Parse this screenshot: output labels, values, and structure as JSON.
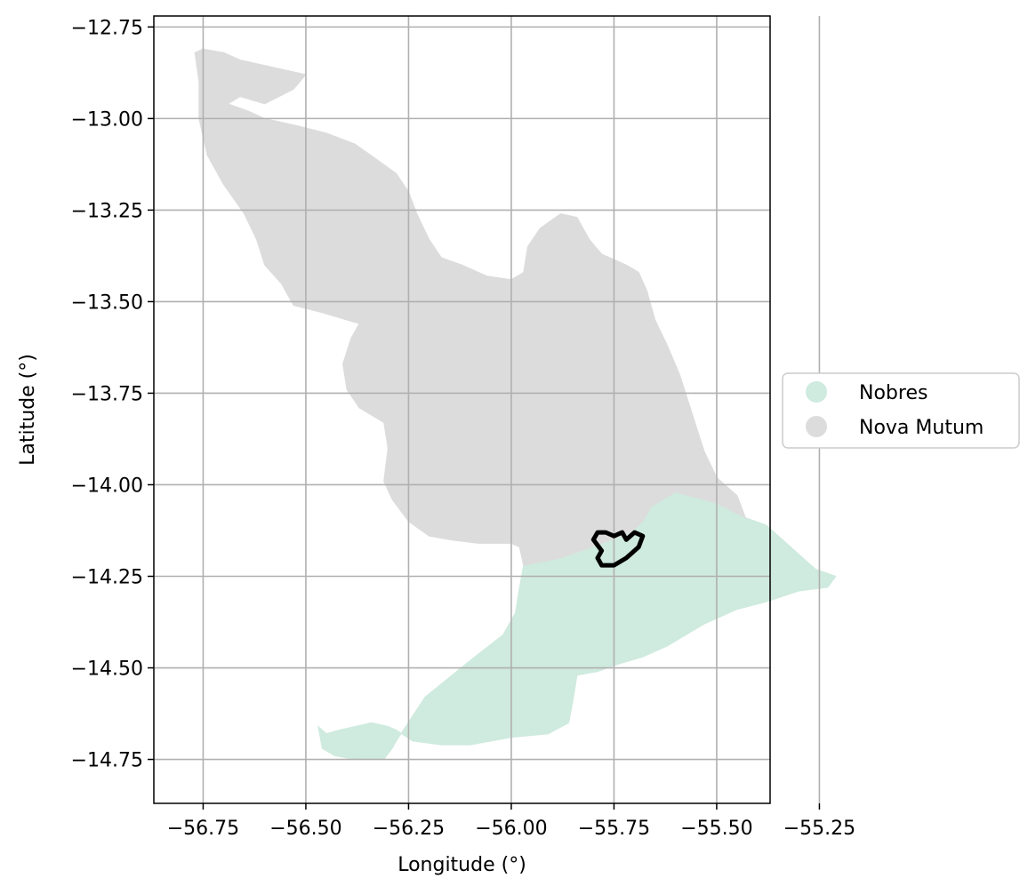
{
  "chart_data": {
    "type": "map",
    "xlabel": "Longitude (°)",
    "ylabel": "Latitude (°)",
    "xlim": [
      -56.87,
      -55.37
    ],
    "ylim": [
      -14.87,
      -12.72
    ],
    "xticks": [
      -56.75,
      -56.5,
      -56.25,
      -56.0,
      -55.75,
      -55.5,
      -55.25
    ],
    "xtick_labels": [
      "−56.75",
      "−56.50",
      "−56.25",
      "−56.00",
      "−55.75",
      "−55.50",
      "−55.25"
    ],
    "yticks": [
      -12.75,
      -13.0,
      -13.25,
      -13.5,
      -13.75,
      -14.0,
      -14.25,
      -14.5,
      -14.75
    ],
    "ytick_labels": [
      "−12.75",
      "−13.00",
      "−13.25",
      "−13.50",
      "−13.75",
      "−14.00",
      "−14.25",
      "−14.50",
      "−14.75"
    ],
    "grid": true,
    "legend_position": "right",
    "regions": [
      {
        "name": "Nobres",
        "color": "#cfeade",
        "outline": [
          [
            -55.97,
            -14.22
          ],
          [
            -55.88,
            -14.2
          ],
          [
            -55.78,
            -14.16
          ],
          [
            -55.71,
            -14.13
          ],
          [
            -55.68,
            -14.1
          ],
          [
            -55.66,
            -14.06
          ],
          [
            -55.6,
            -14.02
          ],
          [
            -55.5,
            -14.05
          ],
          [
            -55.43,
            -14.09
          ],
          [
            -55.38,
            -14.11
          ],
          [
            -55.34,
            -14.15
          ],
          [
            -55.3,
            -14.19
          ],
          [
            -55.26,
            -14.23
          ],
          [
            -55.21,
            -14.25
          ],
          [
            -55.23,
            -14.28
          ],
          [
            -55.3,
            -14.29
          ],
          [
            -55.38,
            -14.32
          ],
          [
            -55.45,
            -14.34
          ],
          [
            -55.53,
            -14.38
          ],
          [
            -55.62,
            -14.44
          ],
          [
            -55.68,
            -14.47
          ],
          [
            -55.74,
            -14.49
          ],
          [
            -55.79,
            -14.51
          ],
          [
            -55.84,
            -14.52
          ],
          [
            -55.85,
            -14.59
          ],
          [
            -55.86,
            -14.65
          ],
          [
            -55.91,
            -14.68
          ],
          [
            -56.0,
            -14.69
          ],
          [
            -56.1,
            -14.71
          ],
          [
            -56.17,
            -14.71
          ],
          [
            -56.24,
            -14.7
          ],
          [
            -56.28,
            -14.67
          ],
          [
            -56.3,
            -14.66
          ],
          [
            -56.34,
            -14.65
          ],
          [
            -56.38,
            -14.66
          ],
          [
            -56.42,
            -14.67
          ],
          [
            -56.45,
            -14.68
          ],
          [
            -56.47,
            -14.66
          ],
          [
            -56.46,
            -14.72
          ],
          [
            -56.43,
            -14.74
          ],
          [
            -56.38,
            -14.75
          ],
          [
            -56.31,
            -14.75
          ],
          [
            -56.29,
            -14.72
          ],
          [
            -56.28,
            -14.7
          ],
          [
            -56.21,
            -14.58
          ],
          [
            -56.1,
            -14.48
          ],
          [
            -56.02,
            -14.41
          ],
          [
            -55.99,
            -14.35
          ],
          [
            -55.98,
            -14.28
          ]
        ]
      },
      {
        "name": "Nova Mutum",
        "color": "#dcdcdc",
        "outline": [
          [
            -56.77,
            -12.82
          ],
          [
            -56.75,
            -12.81
          ],
          [
            -56.7,
            -12.82
          ],
          [
            -56.66,
            -12.84
          ],
          [
            -56.58,
            -12.86
          ],
          [
            -56.5,
            -12.88
          ],
          [
            -56.53,
            -12.92
          ],
          [
            -56.6,
            -12.96
          ],
          [
            -56.63,
            -12.95
          ],
          [
            -56.66,
            -12.94
          ],
          [
            -56.69,
            -12.96
          ],
          [
            -56.64,
            -12.98
          ],
          [
            -56.6,
            -13.0
          ],
          [
            -56.52,
            -13.02
          ],
          [
            -56.45,
            -13.04
          ],
          [
            -56.38,
            -13.07
          ],
          [
            -56.33,
            -13.11
          ],
          [
            -56.28,
            -13.15
          ],
          [
            -56.25,
            -13.2
          ],
          [
            -56.23,
            -13.26
          ],
          [
            -56.2,
            -13.33
          ],
          [
            -56.17,
            -13.38
          ],
          [
            -56.12,
            -13.4
          ],
          [
            -56.06,
            -13.43
          ],
          [
            -56.0,
            -13.44
          ],
          [
            -55.97,
            -13.42
          ],
          [
            -55.96,
            -13.35
          ],
          [
            -55.93,
            -13.3
          ],
          [
            -55.88,
            -13.26
          ],
          [
            -55.84,
            -13.27
          ],
          [
            -55.81,
            -13.33
          ],
          [
            -55.78,
            -13.37
          ],
          [
            -55.72,
            -13.4
          ],
          [
            -55.69,
            -13.42
          ],
          [
            -55.67,
            -13.47
          ],
          [
            -55.65,
            -13.55
          ],
          [
            -55.62,
            -13.62
          ],
          [
            -55.59,
            -13.7
          ],
          [
            -55.57,
            -13.77
          ],
          [
            -55.55,
            -13.84
          ],
          [
            -55.53,
            -13.91
          ],
          [
            -55.5,
            -13.98
          ],
          [
            -55.45,
            -14.03
          ],
          [
            -55.43,
            -14.09
          ],
          [
            -55.5,
            -14.05
          ],
          [
            -55.6,
            -14.02
          ],
          [
            -55.66,
            -14.06
          ],
          [
            -55.68,
            -14.1
          ],
          [
            -55.71,
            -14.13
          ],
          [
            -55.78,
            -14.16
          ],
          [
            -55.88,
            -14.2
          ],
          [
            -55.97,
            -14.22
          ],
          [
            -55.98,
            -14.17
          ],
          [
            -56.0,
            -14.16
          ],
          [
            -56.08,
            -14.16
          ],
          [
            -56.15,
            -14.15
          ],
          [
            -56.2,
            -14.14
          ],
          [
            -56.25,
            -14.1
          ],
          [
            -56.29,
            -14.04
          ],
          [
            -56.31,
            -13.99
          ],
          [
            -56.3,
            -13.9
          ],
          [
            -56.31,
            -13.83
          ],
          [
            -56.37,
            -13.79
          ],
          [
            -56.4,
            -13.74
          ],
          [
            -56.41,
            -13.67
          ],
          [
            -56.39,
            -13.6
          ],
          [
            -56.37,
            -13.56
          ],
          [
            -56.46,
            -13.53
          ],
          [
            -56.53,
            -13.51
          ],
          [
            -56.56,
            -13.45
          ],
          [
            -56.6,
            -13.4
          ],
          [
            -56.62,
            -13.33
          ],
          [
            -56.65,
            -13.26
          ],
          [
            -56.7,
            -13.18
          ],
          [
            -56.74,
            -13.1
          ],
          [
            -56.76,
            -13.0
          ],
          [
            -56.76,
            -12.9
          ]
        ]
      }
    ],
    "highlight_outline": {
      "color": "#000000",
      "points": [
        [
          -55.79,
          -14.13
        ],
        [
          -55.77,
          -14.13
        ],
        [
          -55.75,
          -14.14
        ],
        [
          -55.73,
          -14.13
        ],
        [
          -55.72,
          -14.15
        ],
        [
          -55.7,
          -14.13
        ],
        [
          -55.68,
          -14.14
        ],
        [
          -55.69,
          -14.17
        ],
        [
          -55.72,
          -14.2
        ],
        [
          -55.75,
          -14.22
        ],
        [
          -55.78,
          -14.22
        ],
        [
          -55.79,
          -14.2
        ],
        [
          -55.78,
          -14.18
        ],
        [
          -55.8,
          -14.15
        ]
      ]
    }
  },
  "legend": {
    "items": [
      {
        "label": "Nobres",
        "color": "#cfeade"
      },
      {
        "label": "Nova Mutum",
        "color": "#dcdcdc"
      }
    ]
  }
}
